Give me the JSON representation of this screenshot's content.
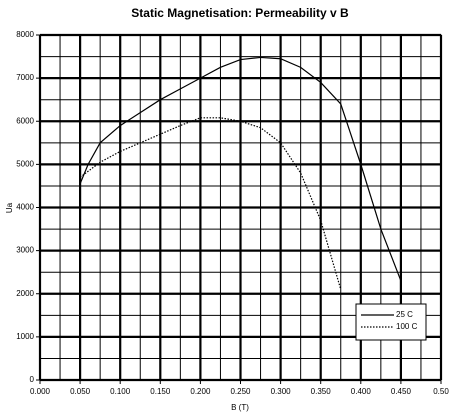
{
  "chart_data": {
    "type": "line",
    "title": "Static Magnetisation: Permeability v B",
    "xlabel": "B (T)",
    "ylabel": "Ua",
    "xlim": [
      0,
      0.5
    ],
    "ylim": [
      0,
      8000
    ],
    "xticks": [
      {
        "value": 0,
        "label": "0.000"
      },
      {
        "value": 0.05,
        "label": "0.050"
      },
      {
        "value": 0.1,
        "label": "0.100"
      },
      {
        "value": 0.15,
        "label": "0.150"
      },
      {
        "value": 0.2,
        "label": "0.200"
      },
      {
        "value": 0.25,
        "label": "0.250"
      },
      {
        "value": 0.3,
        "label": "0.300"
      },
      {
        "value": 0.35,
        "label": "0.350"
      },
      {
        "value": 0.4,
        "label": "0.400"
      },
      {
        "value": 0.45,
        "label": "0.450"
      },
      {
        "value": 0.5,
        "label": "0.50"
      }
    ],
    "yticks": [
      0,
      1000,
      2000,
      3000,
      4000,
      5000,
      6000,
      7000,
      8000
    ],
    "grid": true,
    "minor_grid": true,
    "legend": "lower right",
    "series": [
      {
        "name": "25 C",
        "color": "#000000",
        "dash": "solid",
        "x": [
          0.05,
          0.06,
          0.075,
          0.1,
          0.125,
          0.15,
          0.175,
          0.2,
          0.225,
          0.25,
          0.275,
          0.3,
          0.325,
          0.35,
          0.375,
          0.4,
          0.425,
          0.45
        ],
        "values": [
          4550,
          5000,
          5500,
          5900,
          6200,
          6500,
          6750,
          7000,
          7250,
          7430,
          7480,
          7450,
          7250,
          6900,
          6400,
          5000,
          3500,
          2300
        ]
      },
      {
        "name": "100 C",
        "color": "#000000",
        "dash": "dotted",
        "x": [
          0.05,
          0.075,
          0.1,
          0.125,
          0.15,
          0.175,
          0.2,
          0.225,
          0.25,
          0.275,
          0.3,
          0.325,
          0.35,
          0.375
        ],
        "values": [
          4700,
          5050,
          5300,
          5500,
          5700,
          5900,
          6080,
          6080,
          6000,
          5850,
          5500,
          4800,
          3700,
          2100
        ]
      }
    ]
  }
}
